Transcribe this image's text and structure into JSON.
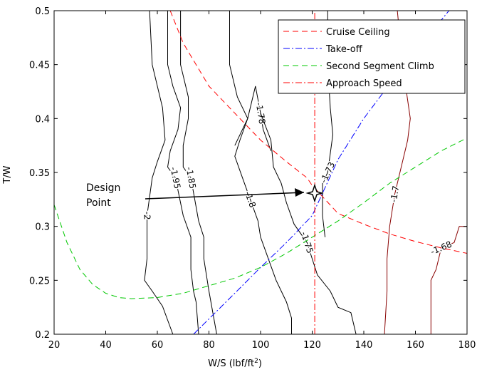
{
  "chart_data": {
    "type": "line",
    "xlabel": "W/S (lbf/ft",
    "xlabel_sup": "2",
    "xlabel_tail": ")",
    "ylabel": "T/W",
    "xlim": [
      20,
      180
    ],
    "ylim": [
      0.2,
      0.5
    ],
    "x_ticks": [
      "20",
      "40",
      "60",
      "80",
      "100",
      "120",
      "140",
      "160",
      "180"
    ],
    "y_ticks": [
      "0.2",
      "0.25",
      "0.3",
      "0.35",
      "0.4",
      "0.45",
      "0.5"
    ],
    "grid": false,
    "legend_position": "top-right",
    "series": [
      {
        "name": "Cruise Ceiling",
        "color": "#ff0000",
        "dash": "8,5",
        "points": [
          [
            65,
            0.5
          ],
          [
            70,
            0.47
          ],
          [
            80,
            0.43
          ],
          [
            90,
            0.405
          ],
          [
            100,
            0.38
          ],
          [
            110,
            0.36
          ],
          [
            118,
            0.345
          ],
          [
            120,
            0.338
          ],
          [
            125,
            0.325
          ],
          [
            130,
            0.312
          ],
          [
            140,
            0.302
          ],
          [
            150,
            0.293
          ],
          [
            160,
            0.286
          ],
          [
            170,
            0.28
          ],
          [
            180,
            0.275
          ]
        ]
      },
      {
        "name": "Take-off",
        "color": "#0000ff",
        "dash": "9,3,2,3",
        "points": [
          [
            74,
            0.2
          ],
          [
            90,
            0.238
          ],
          [
            100,
            0.262
          ],
          [
            110,
            0.285
          ],
          [
            120,
            0.31
          ],
          [
            130,
            0.362
          ],
          [
            140,
            0.4
          ],
          [
            150,
            0.432
          ],
          [
            160,
            0.462
          ],
          [
            173,
            0.5
          ]
        ]
      },
      {
        "name": "Second Segment Climb",
        "color": "#00c800",
        "dash": "8,5",
        "points": [
          [
            20,
            0.32
          ],
          [
            25,
            0.285
          ],
          [
            30,
            0.26
          ],
          [
            35,
            0.246
          ],
          [
            40,
            0.238
          ],
          [
            45,
            0.234
          ],
          [
            50,
            0.233
          ],
          [
            60,
            0.234
          ],
          [
            70,
            0.238
          ],
          [
            80,
            0.245
          ],
          [
            90,
            0.252
          ],
          [
            100,
            0.262
          ],
          [
            110,
            0.275
          ],
          [
            120,
            0.29
          ],
          [
            130,
            0.305
          ],
          [
            140,
            0.322
          ],
          [
            150,
            0.34
          ],
          [
            160,
            0.355
          ],
          [
            170,
            0.37
          ],
          [
            180,
            0.382
          ]
        ]
      },
      {
        "name": "Approach Speed",
        "color": "#ff0000",
        "dash": "9,3,2,3",
        "points": [
          [
            121,
            0.2
          ],
          [
            121,
            0.5
          ]
        ]
      }
    ],
    "contours": [
      {
        "label": "-2",
        "color": "#000000",
        "points": [
          [
            57,
            0.5
          ],
          [
            58,
            0.45
          ],
          [
            62,
            0.41
          ],
          [
            63,
            0.38
          ],
          [
            60,
            0.36
          ],
          [
            58,
            0.345
          ],
          [
            56,
            0.31
          ],
          [
            56,
            0.29
          ],
          [
            56,
            0.27
          ],
          [
            55,
            0.25
          ],
          [
            58,
            0.24
          ],
          [
            62,
            0.226
          ],
          [
            66,
            0.2
          ]
        ]
      },
      {
        "label": "-1.95",
        "color": "#000000",
        "points": [
          [
            64,
            0.5
          ],
          [
            64,
            0.45
          ],
          [
            66,
            0.43
          ],
          [
            69,
            0.41
          ],
          [
            68,
            0.39
          ],
          [
            65,
            0.37
          ],
          [
            64,
            0.355
          ],
          [
            67,
            0.345
          ],
          [
            70,
            0.31
          ],
          [
            73,
            0.29
          ],
          [
            73,
            0.26
          ],
          [
            74,
            0.24
          ],
          [
            75,
            0.23
          ],
          [
            76,
            0.2
          ]
        ]
      },
      {
        "label": "-1.85",
        "color": "#000000",
        "points": [
          [
            69,
            0.5
          ],
          [
            69,
            0.45
          ],
          [
            72,
            0.42
          ],
          [
            72,
            0.4
          ],
          [
            70,
            0.375
          ],
          [
            70,
            0.355
          ],
          [
            73,
            0.345
          ],
          [
            76,
            0.305
          ],
          [
            78,
            0.29
          ],
          [
            78,
            0.27
          ],
          [
            80,
            0.24
          ],
          [
            83,
            0.2
          ]
        ]
      },
      {
        "label": "-1.8",
        "color": "#000000",
        "points": [
          [
            88,
            0.5
          ],
          [
            88,
            0.45
          ],
          [
            91,
            0.42
          ],
          [
            95,
            0.4
          ],
          [
            92,
            0.38
          ],
          [
            90,
            0.365
          ],
          [
            93,
            0.345
          ],
          [
            96,
            0.325
          ],
          [
            99,
            0.305
          ],
          [
            100,
            0.29
          ],
          [
            103,
            0.27
          ],
          [
            106,
            0.25
          ],
          [
            110,
            0.23
          ],
          [
            112,
            0.215
          ],
          [
            112,
            0.2
          ]
        ]
      },
      {
        "label": "-1.78",
        "color": "#000000",
        "points": [
          [
            90,
            0.375
          ],
          [
            95,
            0.4
          ],
          [
            98,
            0.43
          ],
          [
            100,
            0.405
          ],
          [
            101,
            0.39
          ],
          [
            104,
            0.37
          ]
        ]
      },
      {
        "label": "-1.75",
        "color": "#000000",
        "points": [
          [
            100,
            0.405
          ],
          [
            104,
            0.38
          ],
          [
            105,
            0.355
          ],
          [
            108,
            0.34
          ],
          [
            110,
            0.322
          ],
          [
            113,
            0.302
          ],
          [
            118,
            0.285
          ],
          [
            120,
            0.27
          ],
          [
            122,
            0.255
          ],
          [
            127,
            0.24
          ],
          [
            130,
            0.225
          ],
          [
            135,
            0.22
          ],
          [
            137,
            0.2
          ]
        ]
      },
      {
        "label": "-1.73",
        "color": "#000000",
        "points": [
          [
            126,
            0.5
          ],
          [
            126,
            0.45
          ],
          [
            127,
            0.41
          ],
          [
            128,
            0.385
          ],
          [
            126,
            0.35
          ],
          [
            124,
            0.34
          ],
          [
            124,
            0.31
          ],
          [
            125,
            0.29
          ]
        ]
      },
      {
        "label": "-1.7",
        "color": "#880000",
        "points": [
          [
            153,
            0.5
          ],
          [
            155,
            0.45
          ],
          [
            158,
            0.4
          ],
          [
            157,
            0.38
          ],
          [
            152,
            0.33
          ],
          [
            150,
            0.3
          ],
          [
            149,
            0.27
          ],
          [
            149,
            0.24
          ],
          [
            148,
            0.2
          ]
        ]
      },
      {
        "label": "-1.68",
        "color": "#880000",
        "points": [
          [
            166,
            0.2
          ],
          [
            166,
            0.25
          ],
          [
            168,
            0.26
          ],
          [
            170,
            0.28
          ],
          [
            175,
            0.285
          ],
          [
            177,
            0.3
          ],
          [
            180,
            0.3
          ]
        ]
      }
    ],
    "annotations": [
      {
        "text_line1": "Design",
        "text_line2": "Point",
        "point": [
          121,
          0.331
        ]
      }
    ]
  }
}
